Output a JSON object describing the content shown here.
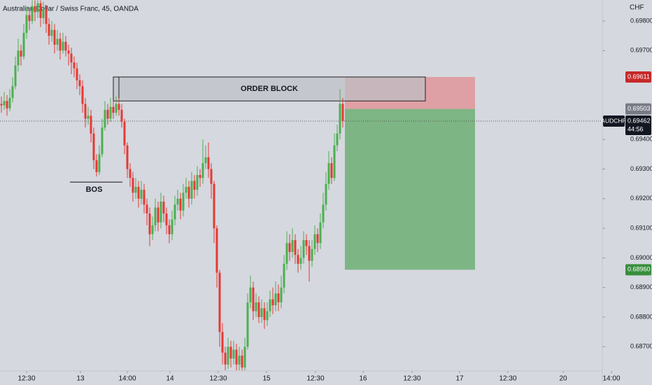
{
  "chart_data": {
    "type": "candlestick",
    "title": "Australian Dollar / Swiss Franc, 45, OANDA",
    "currency": "CHF",
    "symbol": "AUDCHF",
    "countdown": "44:56",
    "up_color": "#4caf50",
    "down_color": "#e53935",
    "xlim": [
      -0.5,
      232.5
    ],
    "ylim": [
      0.68618,
      0.69871
    ],
    "xticks": [
      {
        "value": 9,
        "label": "12:30"
      },
      {
        "value": 28.25,
        "label": "13"
      },
      {
        "value": 45,
        "label": "14:00"
      },
      {
        "value": 60.25,
        "label": "14"
      },
      {
        "value": 77.5,
        "label": "12:30"
      },
      {
        "value": 94.75,
        "label": "15"
      },
      {
        "value": 112.25,
        "label": "12:30"
      },
      {
        "value": 129.25,
        "label": "16"
      },
      {
        "value": 146.75,
        "label": "12:30"
      },
      {
        "value": 163.75,
        "label": "17"
      },
      {
        "value": 181,
        "label": "12:30"
      },
      {
        "value": 200.75,
        "label": "20"
      },
      {
        "value": 218,
        "label": "14:00"
      }
    ],
    "yticks": [
      {
        "value": 0.698,
        "label": "0.69800"
      },
      {
        "value": 0.697,
        "label": "0.69700"
      },
      {
        "value": 0.694,
        "label": "0.69400"
      },
      {
        "value": 0.693,
        "label": "0.69300"
      },
      {
        "value": 0.692,
        "label": "0.69200"
      },
      {
        "value": 0.691,
        "label": "0.69100"
      },
      {
        "value": 0.69,
        "label": "0.69000"
      },
      {
        "value": 0.689,
        "label": "0.68900"
      },
      {
        "value": 0.688,
        "label": "0.68800"
      },
      {
        "value": 0.687,
        "label": "0.68700"
      }
    ],
    "last_price": {
      "value": 0.69462,
      "label": "0.69462"
    },
    "order_block": {
      "label": "ORDER BLOCK",
      "x": [
        40,
        151.5
      ],
      "y": [
        0.6953,
        0.69611
      ]
    },
    "bos": {
      "label": "BOS",
      "x": [
        24.5,
        43.25
      ],
      "value": 0.69256
    },
    "position": {
      "x": [
        122.75,
        169.25
      ],
      "stop": {
        "value": 0.69611,
        "label": "0.69611"
      },
      "entry": {
        "value": 0.69503,
        "label": "0.69503"
      },
      "target": {
        "value": 0.6896,
        "label": "0.68960"
      }
    },
    "ohlc": [
      [
        0.6952,
        0.69545,
        0.6949,
        0.69515
      ],
      [
        0.69515,
        0.6956,
        0.695,
        0.6953
      ],
      [
        0.6953,
        0.6955,
        0.6948,
        0.69505
      ],
      [
        0.69505,
        0.6957,
        0.69495,
        0.6954
      ],
      [
        0.6954,
        0.6961,
        0.69525,
        0.6958
      ],
      [
        0.6958,
        0.6968,
        0.6957,
        0.6965
      ],
      [
        0.6965,
        0.6974,
        0.6963,
        0.697
      ],
      [
        0.697,
        0.6972,
        0.6965,
        0.6968
      ],
      [
        0.6968,
        0.6979,
        0.6967,
        0.6976
      ],
      [
        0.6976,
        0.6985,
        0.6974,
        0.6982
      ],
      [
        0.6982,
        0.6984,
        0.6977,
        0.698
      ],
      [
        0.698,
        0.6987,
        0.6979,
        0.6985
      ],
      [
        0.6985,
        0.6987,
        0.698,
        0.6983
      ],
      [
        0.6983,
        0.6987,
        0.6981,
        0.6986
      ],
      [
        0.6986,
        0.6987,
        0.6978,
        0.6981
      ],
      [
        0.6981,
        0.69865,
        0.6979,
        0.6984
      ],
      [
        0.6984,
        0.69855,
        0.6976,
        0.6979
      ],
      [
        0.6979,
        0.6981,
        0.6972,
        0.6975
      ],
      [
        0.6975,
        0.698,
        0.6973,
        0.6977
      ],
      [
        0.6977,
        0.6979,
        0.6969,
        0.6972
      ],
      [
        0.6972,
        0.6977,
        0.697,
        0.6974
      ],
      [
        0.6974,
        0.6976,
        0.6967,
        0.697
      ],
      [
        0.697,
        0.6976,
        0.6969,
        0.6973
      ],
      [
        0.6973,
        0.6975,
        0.6968,
        0.697
      ],
      [
        0.697,
        0.6972,
        0.6965,
        0.6969
      ],
      [
        0.6969,
        0.6971,
        0.6962,
        0.6966
      ],
      [
        0.6966,
        0.6968,
        0.6961,
        0.6964
      ],
      [
        0.6964,
        0.6966,
        0.6957,
        0.696
      ],
      [
        0.696,
        0.6962,
        0.6955,
        0.6958
      ],
      [
        0.6958,
        0.696,
        0.6949,
        0.6952
      ],
      [
        0.6952,
        0.6954,
        0.6944,
        0.6947
      ],
      [
        0.6947,
        0.6951,
        0.6945,
        0.6948
      ],
      [
        0.6948,
        0.695,
        0.6939,
        0.6942
      ],
      [
        0.6942,
        0.6944,
        0.693,
        0.6933
      ],
      [
        0.6933,
        0.6935,
        0.69275,
        0.6929
      ],
      [
        0.6929,
        0.6938,
        0.6928,
        0.6935
      ],
      [
        0.6935,
        0.6947,
        0.6934,
        0.6944
      ],
      [
        0.6944,
        0.6953,
        0.6943,
        0.695
      ],
      [
        0.695,
        0.6952,
        0.6945,
        0.6947
      ],
      [
        0.6947,
        0.6954,
        0.6946,
        0.6951
      ],
      [
        0.6951,
        0.6953,
        0.6947,
        0.6949
      ],
      [
        0.6949,
        0.69545,
        0.6948,
        0.6952
      ],
      [
        0.6952,
        0.6954,
        0.6948,
        0.695
      ],
      [
        0.695,
        0.6952,
        0.6944,
        0.6946
      ],
      [
        0.6946,
        0.6947,
        0.6935,
        0.6938
      ],
      [
        0.6938,
        0.6939,
        0.6927,
        0.693
      ],
      [
        0.693,
        0.6932,
        0.6924,
        0.6927
      ],
      [
        0.6927,
        0.6929,
        0.6919,
        0.6922
      ],
      [
        0.6922,
        0.6927,
        0.692,
        0.6924
      ],
      [
        0.6924,
        0.6926,
        0.6917,
        0.692
      ],
      [
        0.692,
        0.6926,
        0.6918,
        0.6923
      ],
      [
        0.6923,
        0.6925,
        0.6915,
        0.6918
      ],
      [
        0.6918,
        0.692,
        0.6911,
        0.6915
      ],
      [
        0.6915,
        0.6917,
        0.6904,
        0.6908
      ],
      [
        0.6908,
        0.6914,
        0.6906,
        0.6911
      ],
      [
        0.6911,
        0.692,
        0.6909,
        0.6917
      ],
      [
        0.6917,
        0.6919,
        0.6909,
        0.6912
      ],
      [
        0.6912,
        0.6922,
        0.691,
        0.6919
      ],
      [
        0.6919,
        0.6921,
        0.6912,
        0.6915
      ],
      [
        0.6915,
        0.6917,
        0.6908,
        0.6911
      ],
      [
        0.6911,
        0.6913,
        0.6905,
        0.6908
      ],
      [
        0.6908,
        0.6916,
        0.6906,
        0.6913
      ],
      [
        0.6913,
        0.6921,
        0.6911,
        0.6918
      ],
      [
        0.6918,
        0.6923,
        0.6916,
        0.692
      ],
      [
        0.692,
        0.6922,
        0.6913,
        0.6916
      ],
      [
        0.6916,
        0.6925,
        0.6914,
        0.6922
      ],
      [
        0.6922,
        0.6927,
        0.692,
        0.6924
      ],
      [
        0.6924,
        0.6926,
        0.6917,
        0.692
      ],
      [
        0.692,
        0.6929,
        0.6918,
        0.6926
      ],
      [
        0.6926,
        0.6928,
        0.692,
        0.6923
      ],
      [
        0.6923,
        0.6931,
        0.6921,
        0.6928
      ],
      [
        0.6928,
        0.693,
        0.6924,
        0.6927
      ],
      [
        0.6927,
        0.694,
        0.6925,
        0.6932
      ],
      [
        0.6932,
        0.6938,
        0.693,
        0.6934
      ],
      [
        0.6934,
        0.6939,
        0.6927,
        0.693
      ],
      [
        0.693,
        0.6932,
        0.692,
        0.6925
      ],
      [
        0.6925,
        0.6926,
        0.6905,
        0.691
      ],
      [
        0.691,
        0.6911,
        0.689,
        0.6895
      ],
      [
        0.6895,
        0.6896,
        0.687,
        0.6875
      ],
      [
        0.6875,
        0.6878,
        0.6864,
        0.6868
      ],
      [
        0.6868,
        0.687,
        0.6862,
        0.6864
      ],
      [
        0.6864,
        0.6873,
        0.68625,
        0.687
      ],
      [
        0.687,
        0.6872,
        0.6863,
        0.6866
      ],
      [
        0.6866,
        0.6872,
        0.6864,
        0.6869
      ],
      [
        0.6869,
        0.6871,
        0.6862,
        0.6864
      ],
      [
        0.6864,
        0.687,
        0.6862,
        0.6867
      ],
      [
        0.6867,
        0.6869,
        0.6862,
        0.6863
      ],
      [
        0.6863,
        0.6873,
        0.6862,
        0.687
      ],
      [
        0.687,
        0.6888,
        0.6869,
        0.6885
      ],
      [
        0.6885,
        0.6894,
        0.6883,
        0.689
      ],
      [
        0.689,
        0.6892,
        0.6879,
        0.6882
      ],
      [
        0.6882,
        0.6888,
        0.688,
        0.6885
      ],
      [
        0.6885,
        0.6887,
        0.6878,
        0.688
      ],
      [
        0.688,
        0.6886,
        0.6878,
        0.6883
      ],
      [
        0.6883,
        0.6885,
        0.6876,
        0.6879
      ],
      [
        0.6879,
        0.6885,
        0.6877,
        0.6882
      ],
      [
        0.6882,
        0.6889,
        0.688,
        0.6886
      ],
      [
        0.6886,
        0.689,
        0.6881,
        0.6884
      ],
      [
        0.6884,
        0.6892,
        0.6882,
        0.6888
      ],
      [
        0.6888,
        0.6891,
        0.6882,
        0.6885
      ],
      [
        0.6885,
        0.6894,
        0.6883,
        0.689
      ],
      [
        0.689,
        0.6901,
        0.6888,
        0.6898
      ],
      [
        0.6898,
        0.6909,
        0.6896,
        0.6905
      ],
      [
        0.6905,
        0.6908,
        0.6899,
        0.6902
      ],
      [
        0.6902,
        0.691,
        0.69,
        0.6906
      ],
      [
        0.6906,
        0.6908,
        0.6898,
        0.6901
      ],
      [
        0.6901,
        0.6903,
        0.6895,
        0.6898
      ],
      [
        0.6898,
        0.6904,
        0.6896,
        0.69
      ],
      [
        0.69,
        0.6909,
        0.6898,
        0.6906
      ],
      [
        0.6906,
        0.6908,
        0.6901,
        0.6904
      ],
      [
        0.6904,
        0.6906,
        0.6892,
        0.6899
      ],
      [
        0.6899,
        0.6906,
        0.6897,
        0.6903
      ],
      [
        0.6903,
        0.6911,
        0.6901,
        0.6908
      ],
      [
        0.6908,
        0.691,
        0.6902,
        0.6905
      ],
      [
        0.6905,
        0.6915,
        0.6903,
        0.6912
      ],
      [
        0.6912,
        0.6922,
        0.691,
        0.6918
      ],
      [
        0.6918,
        0.6929,
        0.6916,
        0.6925
      ],
      [
        0.6925,
        0.6936,
        0.6923,
        0.6932
      ],
      [
        0.6932,
        0.6934,
        0.6925,
        0.6927
      ],
      [
        0.6927,
        0.6942,
        0.6926,
        0.6938
      ],
      [
        0.6938,
        0.6945,
        0.6936,
        0.6942
      ],
      [
        0.6942,
        0.6957,
        0.694,
        0.6952
      ],
      [
        0.6952,
        0.6954,
        0.6944,
        0.69462
      ]
    ]
  }
}
